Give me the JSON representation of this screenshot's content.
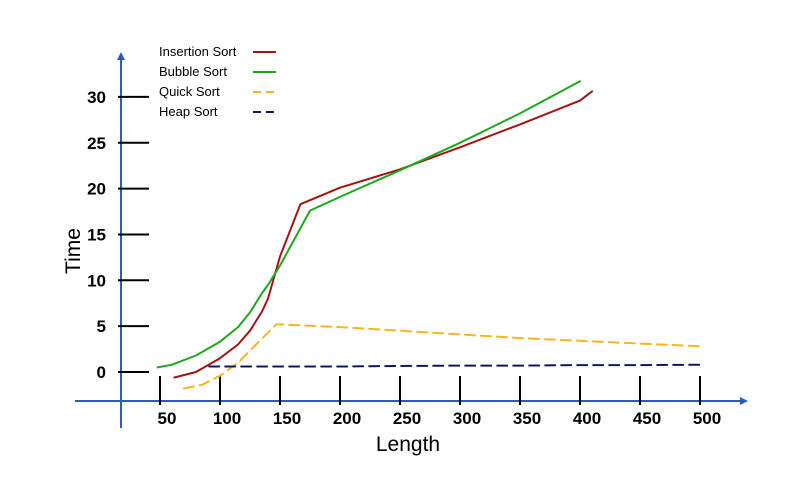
{
  "chart_data": {
    "type": "line",
    "xlabel": "Length",
    "ylabel": "Time",
    "xlim": [
      50,
      500
    ],
    "ylim": [
      0,
      30
    ],
    "x_ticks": [
      {
        "value": 50,
        "label": "50"
      },
      {
        "value": 100,
        "label": "100"
      },
      {
        "value": 150,
        "label": "150"
      },
      {
        "value": 200,
        "label": "200"
      },
      {
        "value": 250,
        "label": "250"
      },
      {
        "value": 300,
        "label": "300"
      },
      {
        "value": 350,
        "label": "350"
      },
      {
        "value": 400,
        "label": "400"
      },
      {
        "value": 450,
        "label": "450"
      },
      {
        "value": 500,
        "label": "500"
      }
    ],
    "y_ticks": [
      {
        "value": 0,
        "label": "0"
      },
      {
        "value": 5,
        "label": "5"
      },
      {
        "value": 10,
        "label": "10"
      },
      {
        "value": 15,
        "label": "15"
      },
      {
        "value": 20,
        "label": "20"
      },
      {
        "value": 25,
        "label": "25"
      },
      {
        "value": 30,
        "label": "30"
      }
    ],
    "grid": false,
    "legend_position": "top-left",
    "series": [
      {
        "name": "Insertion Sort",
        "color": "#a31515",
        "dash": "solid",
        "points": [
          [
            62,
            -0.6
          ],
          [
            80,
            0.0
          ],
          [
            100,
            1.5
          ],
          [
            115,
            3.0
          ],
          [
            125,
            4.5
          ],
          [
            135,
            6.6
          ],
          [
            140,
            8.0
          ],
          [
            150,
            12.6
          ],
          [
            167,
            18.3
          ],
          [
            200,
            20.1
          ],
          [
            250,
            22.1
          ],
          [
            300,
            24.5
          ],
          [
            350,
            27.0
          ],
          [
            400,
            29.6
          ],
          [
            410,
            30.6
          ]
        ]
      },
      {
        "name": "Bubble Sort",
        "color": "#1ea81e",
        "dash": "solid",
        "points": [
          [
            48,
            0.5
          ],
          [
            60,
            0.8
          ],
          [
            80,
            1.8
          ],
          [
            100,
            3.3
          ],
          [
            115,
            4.9
          ],
          [
            125,
            6.5
          ],
          [
            135,
            8.6
          ],
          [
            140,
            9.5
          ],
          [
            150,
            11.6
          ],
          [
            175,
            17.6
          ],
          [
            200,
            19.1
          ],
          [
            250,
            22.0
          ],
          [
            300,
            25.0
          ],
          [
            350,
            28.2
          ],
          [
            400,
            31.7
          ]
        ]
      },
      {
        "name": "Quick Sort",
        "color": "#f7b520",
        "dash": "dashed",
        "points": [
          [
            70,
            -1.8
          ],
          [
            85,
            -1.4
          ],
          [
            100,
            -0.4
          ],
          [
            115,
            1.0
          ],
          [
            130,
            3.0
          ],
          [
            147,
            5.2
          ],
          [
            200,
            4.9
          ],
          [
            250,
            4.5
          ],
          [
            300,
            4.1
          ],
          [
            350,
            3.7
          ],
          [
            400,
            3.4
          ],
          [
            500,
            2.8
          ]
        ]
      },
      {
        "name": "Heap Sort",
        "color": "#0d1a5c",
        "dash": "dashed",
        "points": [
          [
            91,
            0.6
          ],
          [
            150,
            0.6
          ],
          [
            200,
            0.6
          ],
          [
            250,
            0.65
          ],
          [
            300,
            0.7
          ],
          [
            350,
            0.7
          ],
          [
            400,
            0.75
          ],
          [
            450,
            0.75
          ],
          [
            502,
            0.8
          ]
        ]
      }
    ]
  }
}
